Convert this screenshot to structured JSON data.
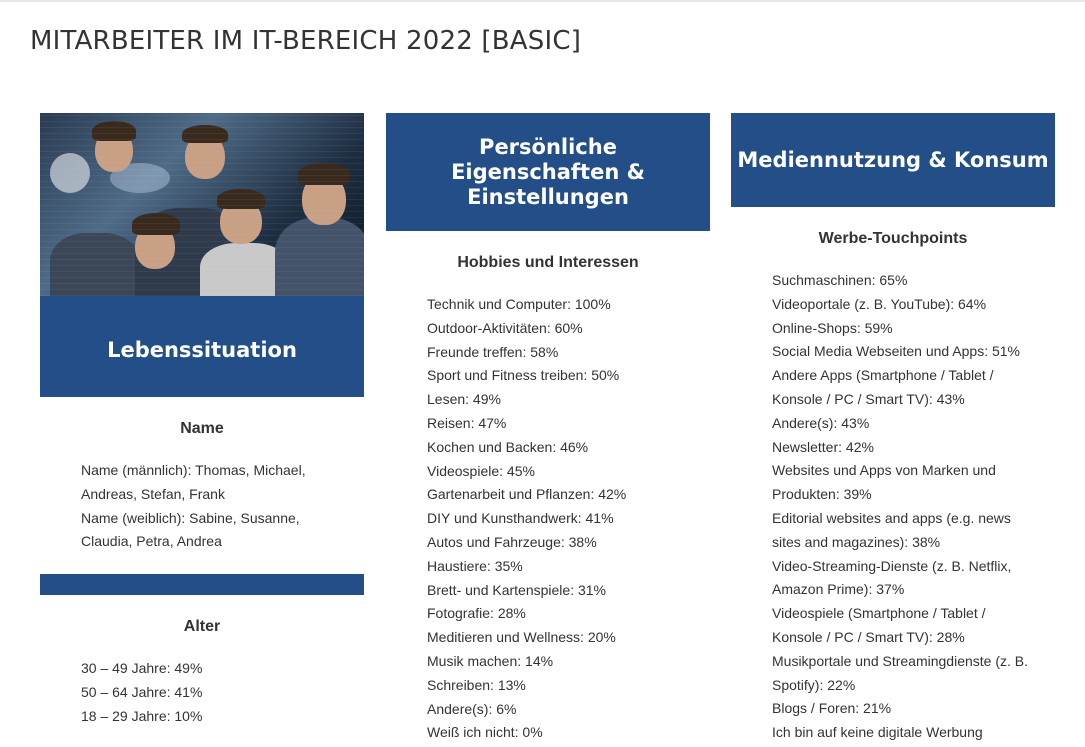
{
  "page_title": "MITARBEITER IM IT-BEREICH 2022 [BASIC]",
  "col1": {
    "header": "Lebenssituation",
    "name_heading": "Name",
    "name_lines": [
      "Name (männlich): Thomas, Michael,",
      "Andreas, Stefan, Frank",
      "Name (weiblich): Sabine, Susanne,",
      "Claudia, Petra, Andrea"
    ],
    "age_heading": "Alter",
    "age_lines": [
      "30 – 49 Jahre: 49%",
      "50 – 64 Jahre: 41%",
      "18 – 29 Jahre: 10%"
    ]
  },
  "col2": {
    "header": "Persönliche Eigenschaften & Einstellungen",
    "subheading": "Hobbies und Interessen",
    "items": [
      "Technik und Computer: 100%",
      "Outdoor-Aktivitäten: 60%",
      "Freunde treffen: 58%",
      "Sport und Fitness treiben: 50%",
      "Lesen: 49%",
      "Reisen: 47%",
      "Kochen und Backen: 46%",
      "Videospiele: 45%",
      "Gartenarbeit und Pflanzen: 42%",
      "DIY und Kunsthandwerk: 41%",
      "Autos und Fahrzeuge: 38%",
      "Haustiere: 35%",
      "Brett- und Kartenspiele: 31%",
      "Fotografie: 28%",
      "Meditieren und Wellness: 20%",
      "Musik machen: 14%",
      "Schreiben: 13%",
      "Andere(s): 6%",
      "Weiß ich nicht: 0%"
    ]
  },
  "col3": {
    "header": "Mediennutzung & Konsum",
    "subheading": "Werbe-Touchpoints",
    "items": [
      "Suchmaschinen: 65%",
      "Videoportale (z. B. YouTube): 64%",
      "Online-Shops: 59%",
      "Social Media Webseiten und Apps: 51%",
      "Andere Apps (Smartphone / Tablet /",
      "Konsole / PC / Smart TV): 43%",
      "Andere(s): 43%",
      "Newsletter: 42%",
      "Websites und Apps von Marken und",
      "Produkten: 39%",
      "Editorial websites and apps (e.g. news",
      "sites and magazines): 38%",
      "Video-Streaming-Dienste (z. B. Netflix,",
      "Amazon Prime): 37%",
      "Videospiele (Smartphone / Tablet /",
      "Konsole / PC / Smart TV): 28%",
      "Musikportale und Streamingdienste (z. B.",
      "Spotify): 22%",
      "Blogs / Foren: 21%",
      "Ich bin auf keine digitale Werbung"
    ]
  },
  "colors": {
    "accent": "#244e88",
    "text": "#333333",
    "background": "#ffffff"
  },
  "hero_image": {
    "icon": "team-photo-image"
  }
}
